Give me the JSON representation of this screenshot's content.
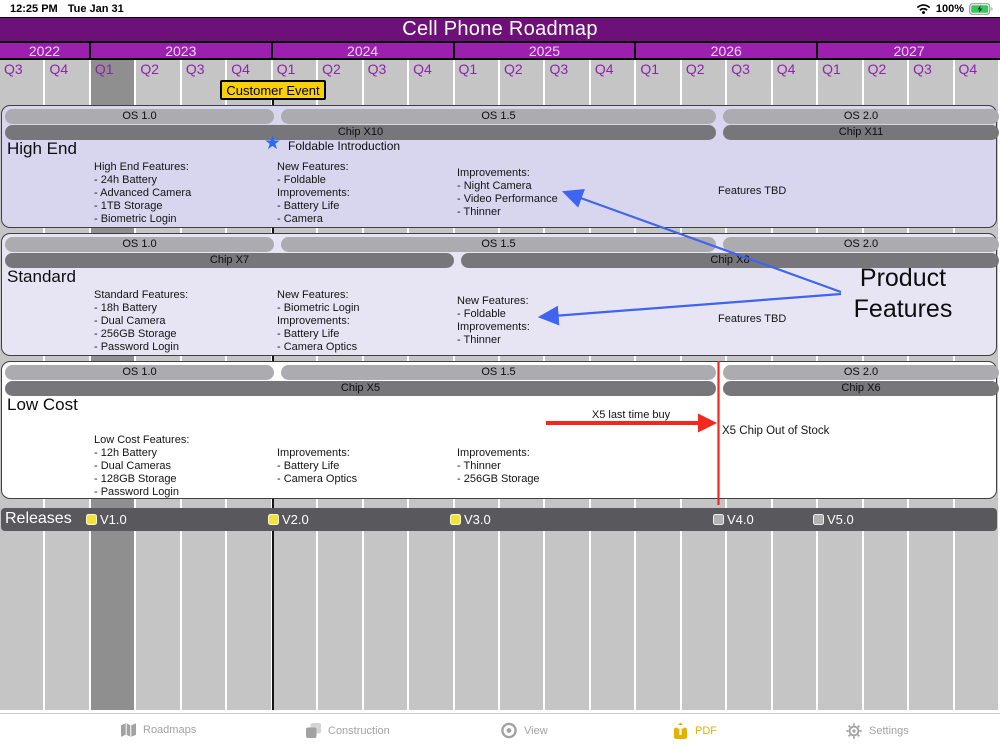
{
  "status_bar": {
    "time": "12:25 PM",
    "date": "Tue Jan 31",
    "battery_percent": "100%"
  },
  "header": {
    "title": "Cell Phone Roadmap"
  },
  "timeline": {
    "years": [
      {
        "label": "2022",
        "quarters": [
          "Q3",
          "Q4"
        ]
      },
      {
        "label": "2023",
        "quarters": [
          "Q1",
          "Q2",
          "Q3",
          "Q4"
        ]
      },
      {
        "label": "2024",
        "quarters": [
          "Q1",
          "Q2",
          "Q3",
          "Q4"
        ]
      },
      {
        "label": "2025",
        "quarters": [
          "Q1",
          "Q2",
          "Q3",
          "Q4"
        ]
      },
      {
        "label": "2026",
        "quarters": [
          "Q1",
          "Q2",
          "Q3",
          "Q4"
        ]
      },
      {
        "label": "2027",
        "quarters": [
          "Q1",
          "Q2",
          "Q3",
          "Q4"
        ]
      }
    ],
    "highlighted_quarter": "Q1 2023",
    "event_label": "Customer Event"
  },
  "lanes": [
    {
      "name": "High End",
      "os_bars": [
        "OS 1.0",
        "OS 1.5",
        "OS 2.0"
      ],
      "chip_bars": [
        "Chip X10",
        "Chip X11"
      ],
      "milestone": "Foldable Introduction",
      "feature_blocks": [
        [
          "High End Features:",
          "- 24h Battery",
          "- Advanced Camera",
          "- 1TB Storage",
          "- Biometric Login"
        ],
        [
          "New Features:",
          "- Foldable",
          "Improvements:",
          "- Battery Life",
          "- Camera"
        ],
        [
          "Improvements:",
          "- Night Camera",
          "- Video Performance",
          "- Thinner"
        ]
      ],
      "tbd": "Features TBD"
    },
    {
      "name": "Standard",
      "os_bars": [
        "OS 1.0",
        "OS 1.5",
        "OS 2.0"
      ],
      "chip_bars": [
        "Chip X7",
        "Chip X8"
      ],
      "feature_blocks": [
        [
          "Standard Features:",
          "- 18h Battery",
          "- Dual Camera",
          "- 256GB Storage",
          "- Password Login"
        ],
        [
          "New Features:",
          "- Biometric Login",
          "Improvements:",
          "- Battery Life",
          "- Camera Optics"
        ],
        [
          "New Features:",
          "- Foldable",
          "Improvements:",
          "- Thinner"
        ]
      ],
      "tbd": "Features TBD"
    },
    {
      "name": "Low Cost",
      "os_bars": [
        "OS 1.0",
        "OS 1.5",
        "OS 2.0"
      ],
      "chip_bars": [
        "Chip X5",
        "Chip X6"
      ],
      "feature_blocks": [
        [
          "Low Cost Features:",
          "- 12h Battery",
          "- Dual Cameras",
          "- 128GB Storage",
          "- Password Login"
        ],
        [
          "Improvements:",
          "- Battery Life",
          "- Camera Optics"
        ],
        [
          "Improvements:",
          "- Thinner",
          "- 256GB Storage"
        ]
      ]
    }
  ],
  "releases": {
    "label": "Releases",
    "items": [
      {
        "label": "V1.0",
        "status": "done"
      },
      {
        "label": "V2.0",
        "status": "done"
      },
      {
        "label": "V3.0",
        "status": "done"
      },
      {
        "label": "V4.0",
        "status": "planned"
      },
      {
        "label": "V5.0",
        "status": "planned"
      }
    ]
  },
  "annotations": {
    "product_features_line1": "Product",
    "product_features_line2": "Features",
    "x5_last_time_buy": "X5 last time buy",
    "x5_out_of_stock": "X5 Chip Out of Stock"
  },
  "colors": {
    "title_bar": "#6d1077",
    "year_band": "#9c1fb0",
    "quarter_text": "#8e24aa",
    "grid_column": "#c5c5c5",
    "current_column": "#8f8f8f",
    "lane_high_end": "#d8d5ef",
    "lane_standard": "#e7e5f4",
    "lane_low_cost": "#ffffff",
    "os_bar": "#acacb0",
    "chip_bar": "#77777b",
    "releases_bar": "#59595d",
    "milestone_done": "#f2e23c",
    "milestone_planned": "#b2b2b2",
    "event_yellow": "#f7cf0a",
    "arrow_blue": "#3e64f0",
    "alert_red": "#f2281e",
    "pdf_accent": "#e3b200"
  },
  "toolbar": {
    "items": [
      {
        "label": "Roadmaps",
        "active": false
      },
      {
        "label": "Construction",
        "active": false
      },
      {
        "label": "View",
        "active": false
      },
      {
        "label": "PDF",
        "active": true
      },
      {
        "label": "Settings",
        "active": false
      }
    ]
  }
}
